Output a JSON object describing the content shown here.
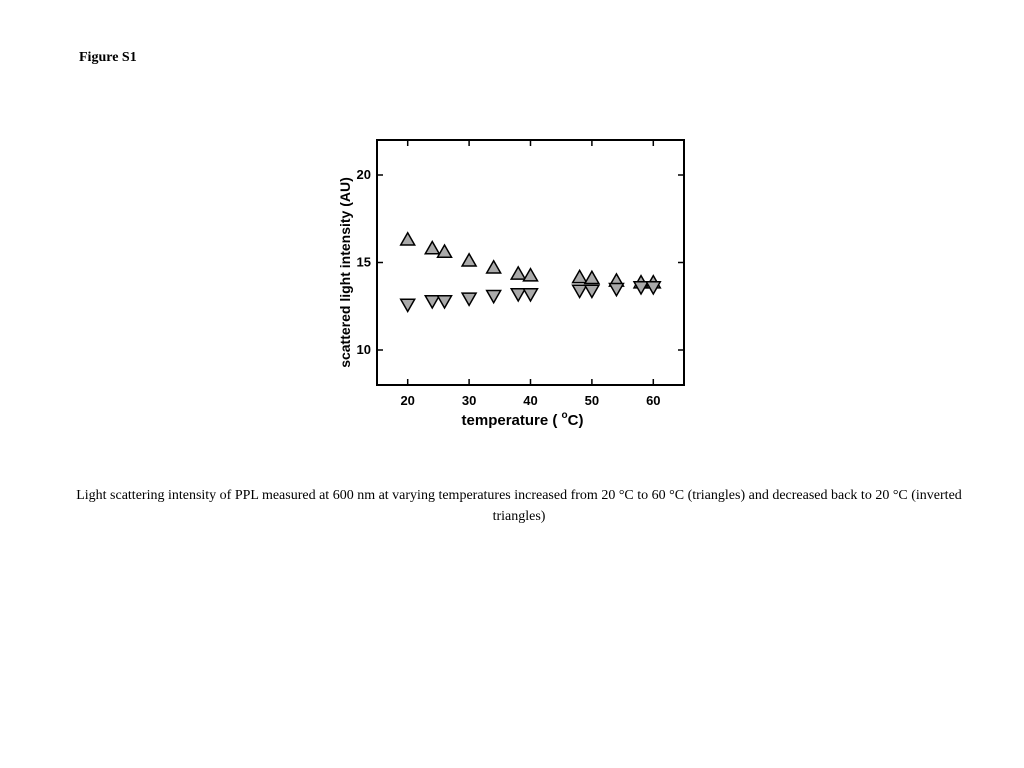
{
  "figure_label": "Figure S1",
  "caption": "Light scattering intensity of PPL measured at 600 nm at varying temperatures increased from 20 °C  to 60 °C (triangles) and decreased back to 20 °C (inverted triangles)",
  "chart_data": {
    "type": "scatter",
    "title": "",
    "xlabel_main": "temperature ( ",
    "xlabel_sup": "o",
    "xlabel_unit": "C)",
    "ylabel": "scattered light intensity (AU)",
    "xlim": [
      15,
      65
    ],
    "ylim": [
      8,
      22
    ],
    "x_ticks": [
      20,
      30,
      40,
      50,
      60
    ],
    "y_ticks": [
      10,
      15,
      20
    ],
    "grid": false,
    "marker_color": "#aaaaaa",
    "series": [
      {
        "marker": "triangle-up",
        "points": [
          [
            20,
            16.3
          ],
          [
            24,
            15.8
          ],
          [
            26,
            15.6
          ],
          [
            30,
            15.1
          ],
          [
            34,
            14.7
          ],
          [
            38,
            14.35
          ],
          [
            40,
            14.25
          ],
          [
            48,
            14.15
          ],
          [
            50,
            14.1
          ],
          [
            54,
            13.95
          ],
          [
            58,
            13.85
          ],
          [
            60,
            13.85
          ]
        ]
      },
      {
        "marker": "triangle-down",
        "points": [
          [
            20,
            12.6
          ],
          [
            24,
            12.8
          ],
          [
            26,
            12.8
          ],
          [
            30,
            12.95
          ],
          [
            34,
            13.1
          ],
          [
            38,
            13.2
          ],
          [
            40,
            13.2
          ],
          [
            48,
            13.4
          ],
          [
            50,
            13.4
          ],
          [
            54,
            13.5
          ],
          [
            58,
            13.6
          ],
          [
            60,
            13.6
          ]
        ]
      }
    ]
  }
}
